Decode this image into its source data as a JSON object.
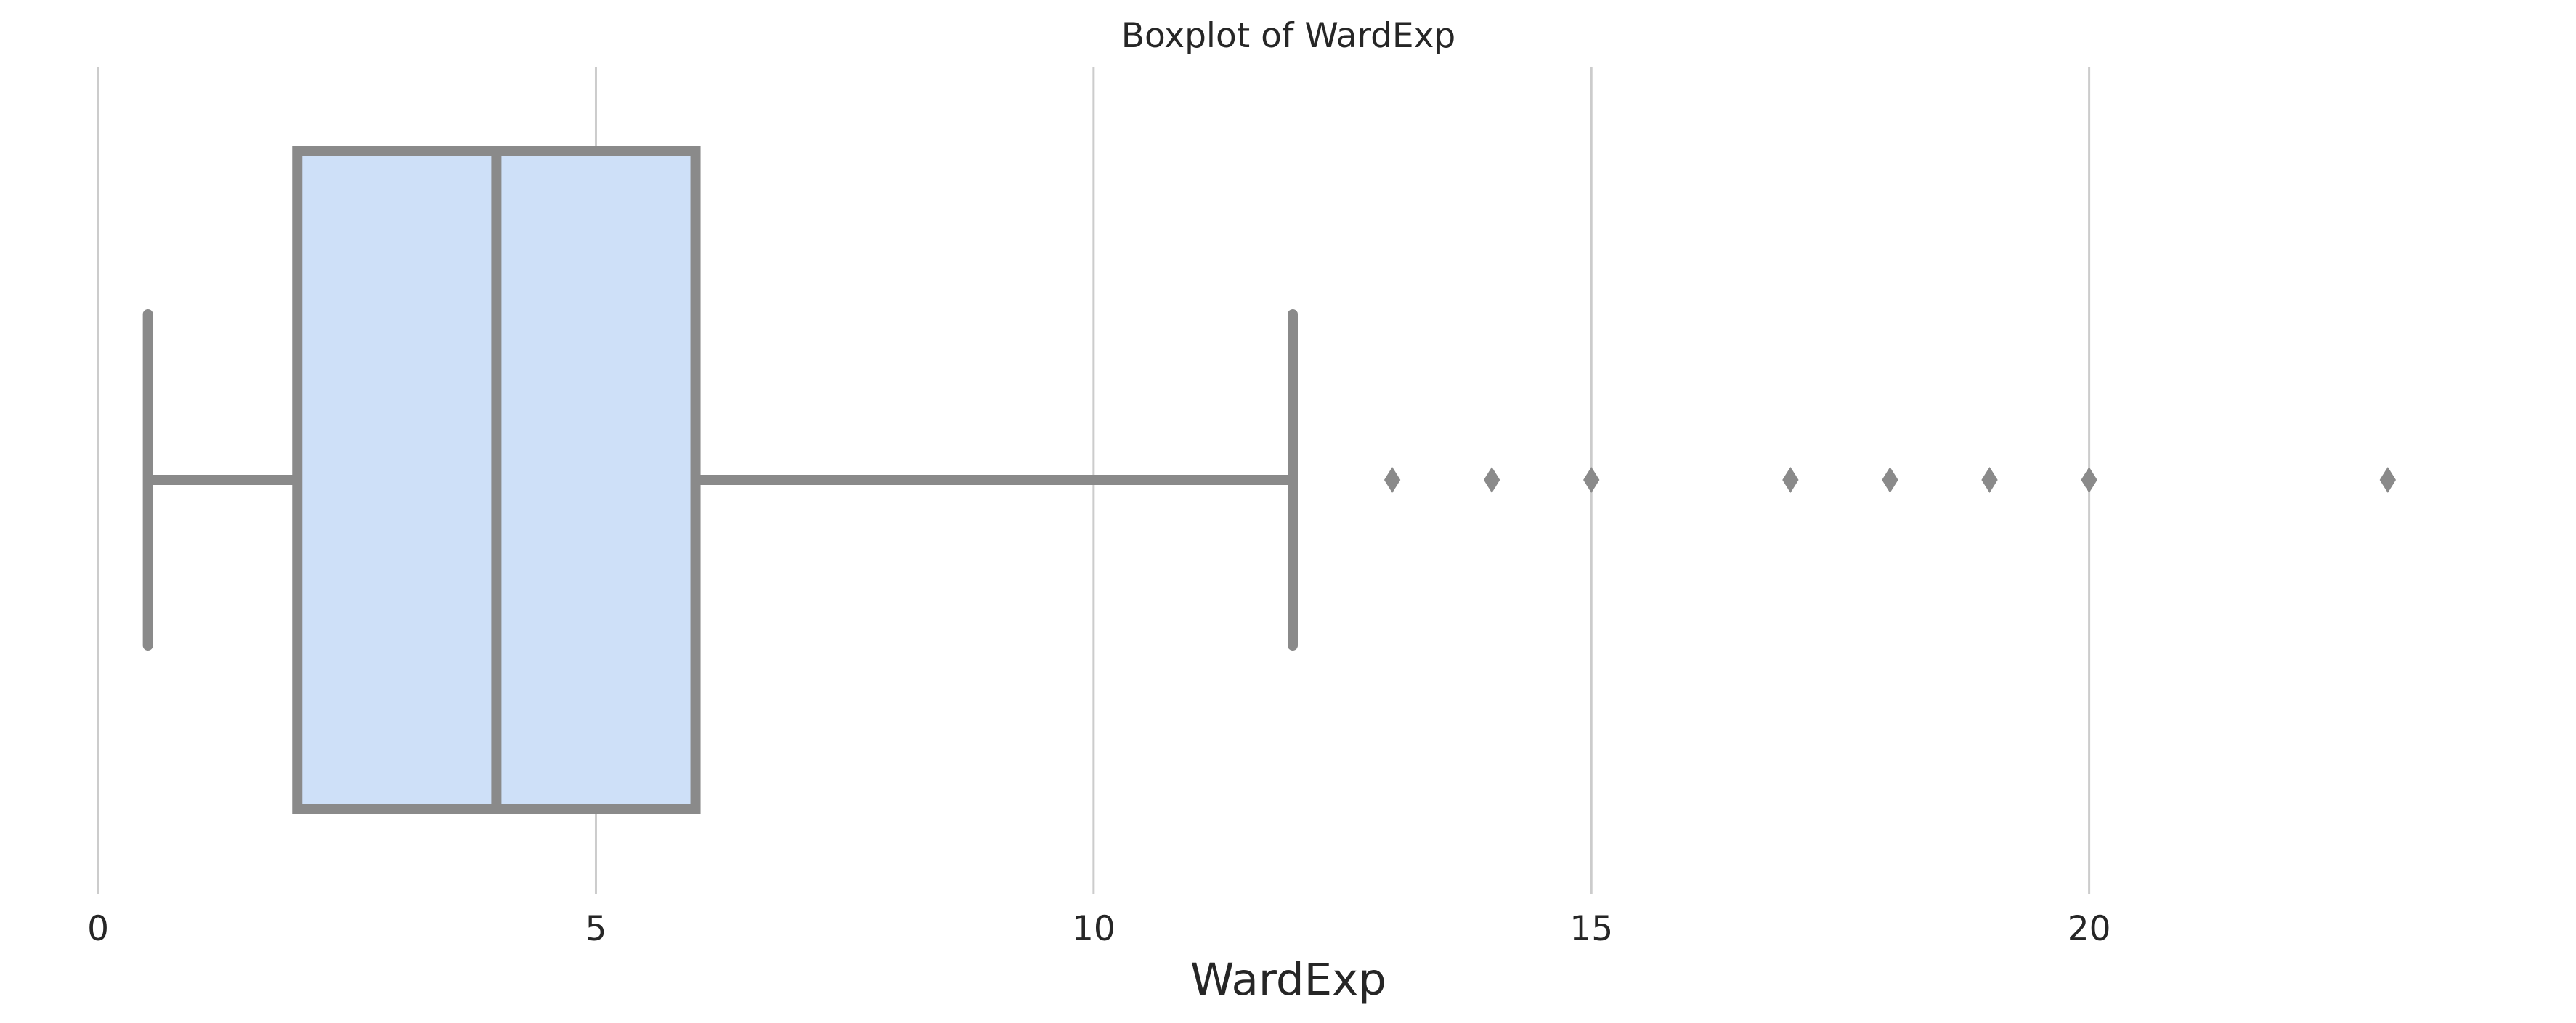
{
  "chart_data": {
    "type": "box",
    "title": "Boxplot of WardExp",
    "xlabel": "WardExp",
    "ylabel": "",
    "orientation": "horizontal",
    "xlim": [
      -0.65,
      24.65
    ],
    "xticks": [
      0,
      5,
      10,
      15,
      20
    ],
    "xtick_labels": [
      "0",
      "5",
      "10",
      "15",
      "20"
    ],
    "grid": {
      "x": true,
      "y": false
    },
    "box": {
      "whisker_low": 0.5,
      "q1": 2,
      "median": 4,
      "q3": 6,
      "whisker_high": 12
    },
    "outliers": [
      13,
      14,
      15,
      17,
      18,
      19,
      20,
      23
    ],
    "colors": {
      "box_fill": "#cee0f8",
      "line": "#8a8a8a",
      "grid": "#cccccc",
      "text": "#262626"
    }
  }
}
